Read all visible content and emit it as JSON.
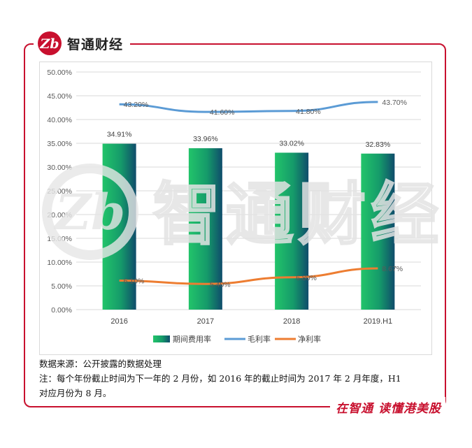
{
  "brand": {
    "name": "智通财经"
  },
  "footer": {
    "slogan": "在智通 读懂港美股"
  },
  "watermark": {
    "text": "智通财经"
  },
  "colors": {
    "frame": "#c8102e",
    "bar_top": "#22c46a",
    "bar_bottom": "#0f4c6b",
    "gross": "#5b9bd5",
    "net": "#ed7d31"
  },
  "notes": {
    "source": "数据来源：公开披露的数据处理",
    "line1": "注：每个年份截止时间为下一年的 2 月份，如 2016 年的截止时间为 2017 年 2 月年度，H1",
    "line2": "对应月份为 8 月。"
  },
  "chart_data": {
    "type": "bar",
    "categories": [
      "2016",
      "2017",
      "2018",
      "2019.H1"
    ],
    "ylim": [
      0,
      50
    ],
    "yticks": [
      "0.00%",
      "5.00%",
      "10.00%",
      "15.00%",
      "20.00%",
      "25.00%",
      "30.00%",
      "35.00%",
      "40.00%",
      "45.00%",
      "50.00%"
    ],
    "grid": true,
    "legend": "bottom",
    "series": [
      {
        "name": "期间费用率",
        "kind": "bar",
        "values": [
          34.91,
          33.96,
          33.02,
          32.83
        ],
        "labels": [
          "34.91%",
          "33.96%",
          "33.02%",
          "32.83%"
        ]
      },
      {
        "name": "毛利率",
        "kind": "line",
        "values": [
          43.2,
          41.6,
          41.8,
          43.7
        ],
        "labels": [
          "43.20%",
          "41.60%",
          "41.80%",
          "43.70%"
        ]
      },
      {
        "name": "净利率",
        "kind": "line",
        "values": [
          6.1,
          5.4,
          6.8,
          8.67
        ],
        "labels": [
          "6.10%",
          "5.40%",
          "6.80%",
          "8.67%"
        ]
      }
    ]
  }
}
